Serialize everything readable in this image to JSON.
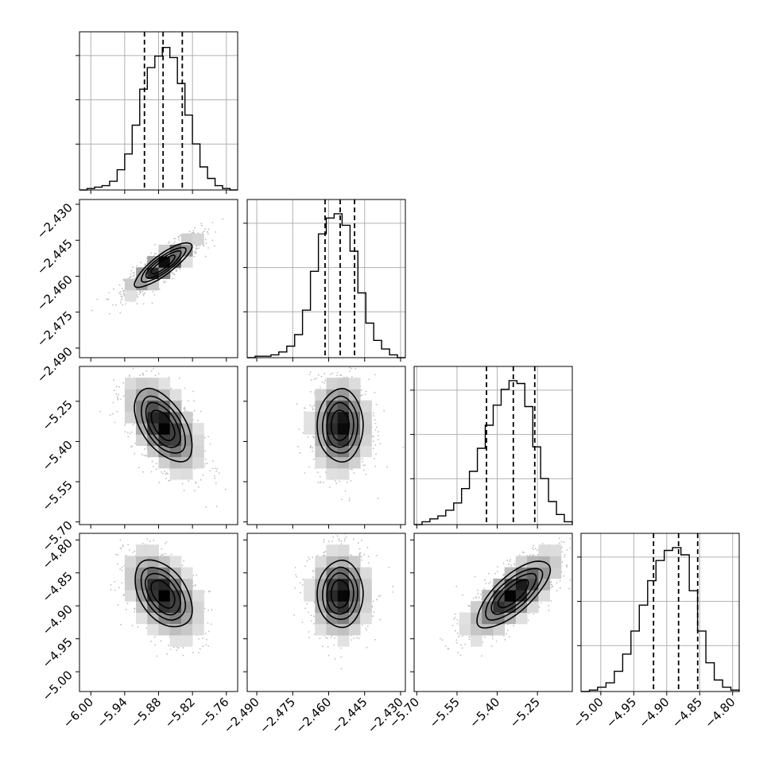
{
  "chart_data": {
    "type": "corner",
    "grid": true,
    "colors": {
      "hist_line": "#000000",
      "quantile_line": "#000000",
      "grid": "#b0b0b0",
      "density_dark": "#000000",
      "density_light": "#f2f2f2",
      "scatter_points": "#bdbdbd",
      "contour": "#000000"
    },
    "parameters": [
      {
        "range": [
          -6.02,
          -5.74
        ],
        "ticks": [
          -6.0,
          -5.94,
          -5.88,
          -5.82,
          -5.76
        ],
        "tick_labels": [
          "−6.00",
          "−5.94",
          "−5.88",
          "−5.82",
          "−5.76"
        ],
        "quantiles": [
          -5.905,
          -5.872,
          -5.838
        ],
        "hist": [
          0,
          1,
          2,
          3,
          6,
          14,
          25,
          45,
          70,
          85,
          93,
          99,
          92,
          74,
          52,
          32,
          16,
          8,
          3,
          1,
          0
        ]
      },
      {
        "range": [
          -2.494,
          -2.428
        ],
        "ticks": [
          -2.49,
          -2.475,
          -2.46,
          -2.445,
          -2.43
        ],
        "tick_labels": [
          "−2.490",
          "−2.475",
          "−2.460",
          "−2.445",
          "−2.430"
        ],
        "quantiles": [
          -2.4615,
          -2.4552,
          -2.4492
        ],
        "hist": [
          0,
          1,
          1,
          2,
          4,
          8,
          16,
          33,
          60,
          86,
          97,
          100,
          92,
          74,
          45,
          24,
          12,
          6,
          2,
          0
        ]
      },
      {
        "range": [
          -5.71,
          -5.12
        ],
        "ticks": [
          -5.7,
          -5.55,
          -5.4,
          -5.25
        ],
        "tick_labels": [
          "−5.70",
          "−5.55",
          "−5.40",
          "−5.25"
        ],
        "quantiles": [
          -5.44,
          -5.34,
          -5.26
        ],
        "hist": [
          0,
          2,
          4,
          6,
          10,
          15,
          25,
          37,
          53,
          69,
          83,
          94,
          100,
          98,
          82,
          54,
          32,
          16,
          7,
          2
        ]
      },
      {
        "range": [
          -5.03,
          -4.79
        ],
        "ticks": [
          -5.0,
          -4.95,
          -4.9,
          -4.85,
          -4.8
        ],
        "tick_labels": [
          "−5.00",
          "−4.95",
          "−4.90",
          "−4.85",
          "−4.80"
        ],
        "quantiles": [
          -4.92,
          -4.882,
          -4.853
        ],
        "hist": [
          0,
          1,
          3,
          6,
          14,
          26,
          42,
          60,
          77,
          91,
          98,
          100,
          95,
          70,
          42,
          20,
          8,
          3,
          1
        ]
      }
    ],
    "correlations": [
      {
        "pair": [
          0,
          1
        ],
        "r": 0.85
      },
      {
        "pair": [
          0,
          2
        ],
        "r": -0.55
      },
      {
        "pair": [
          1,
          2
        ],
        "r": 0.0
      },
      {
        "pair": [
          0,
          3
        ],
        "r": -0.45
      },
      {
        "pair": [
          1,
          3
        ],
        "r": 0.0
      },
      {
        "pair": [
          2,
          3
        ],
        "r": 0.75
      }
    ]
  }
}
